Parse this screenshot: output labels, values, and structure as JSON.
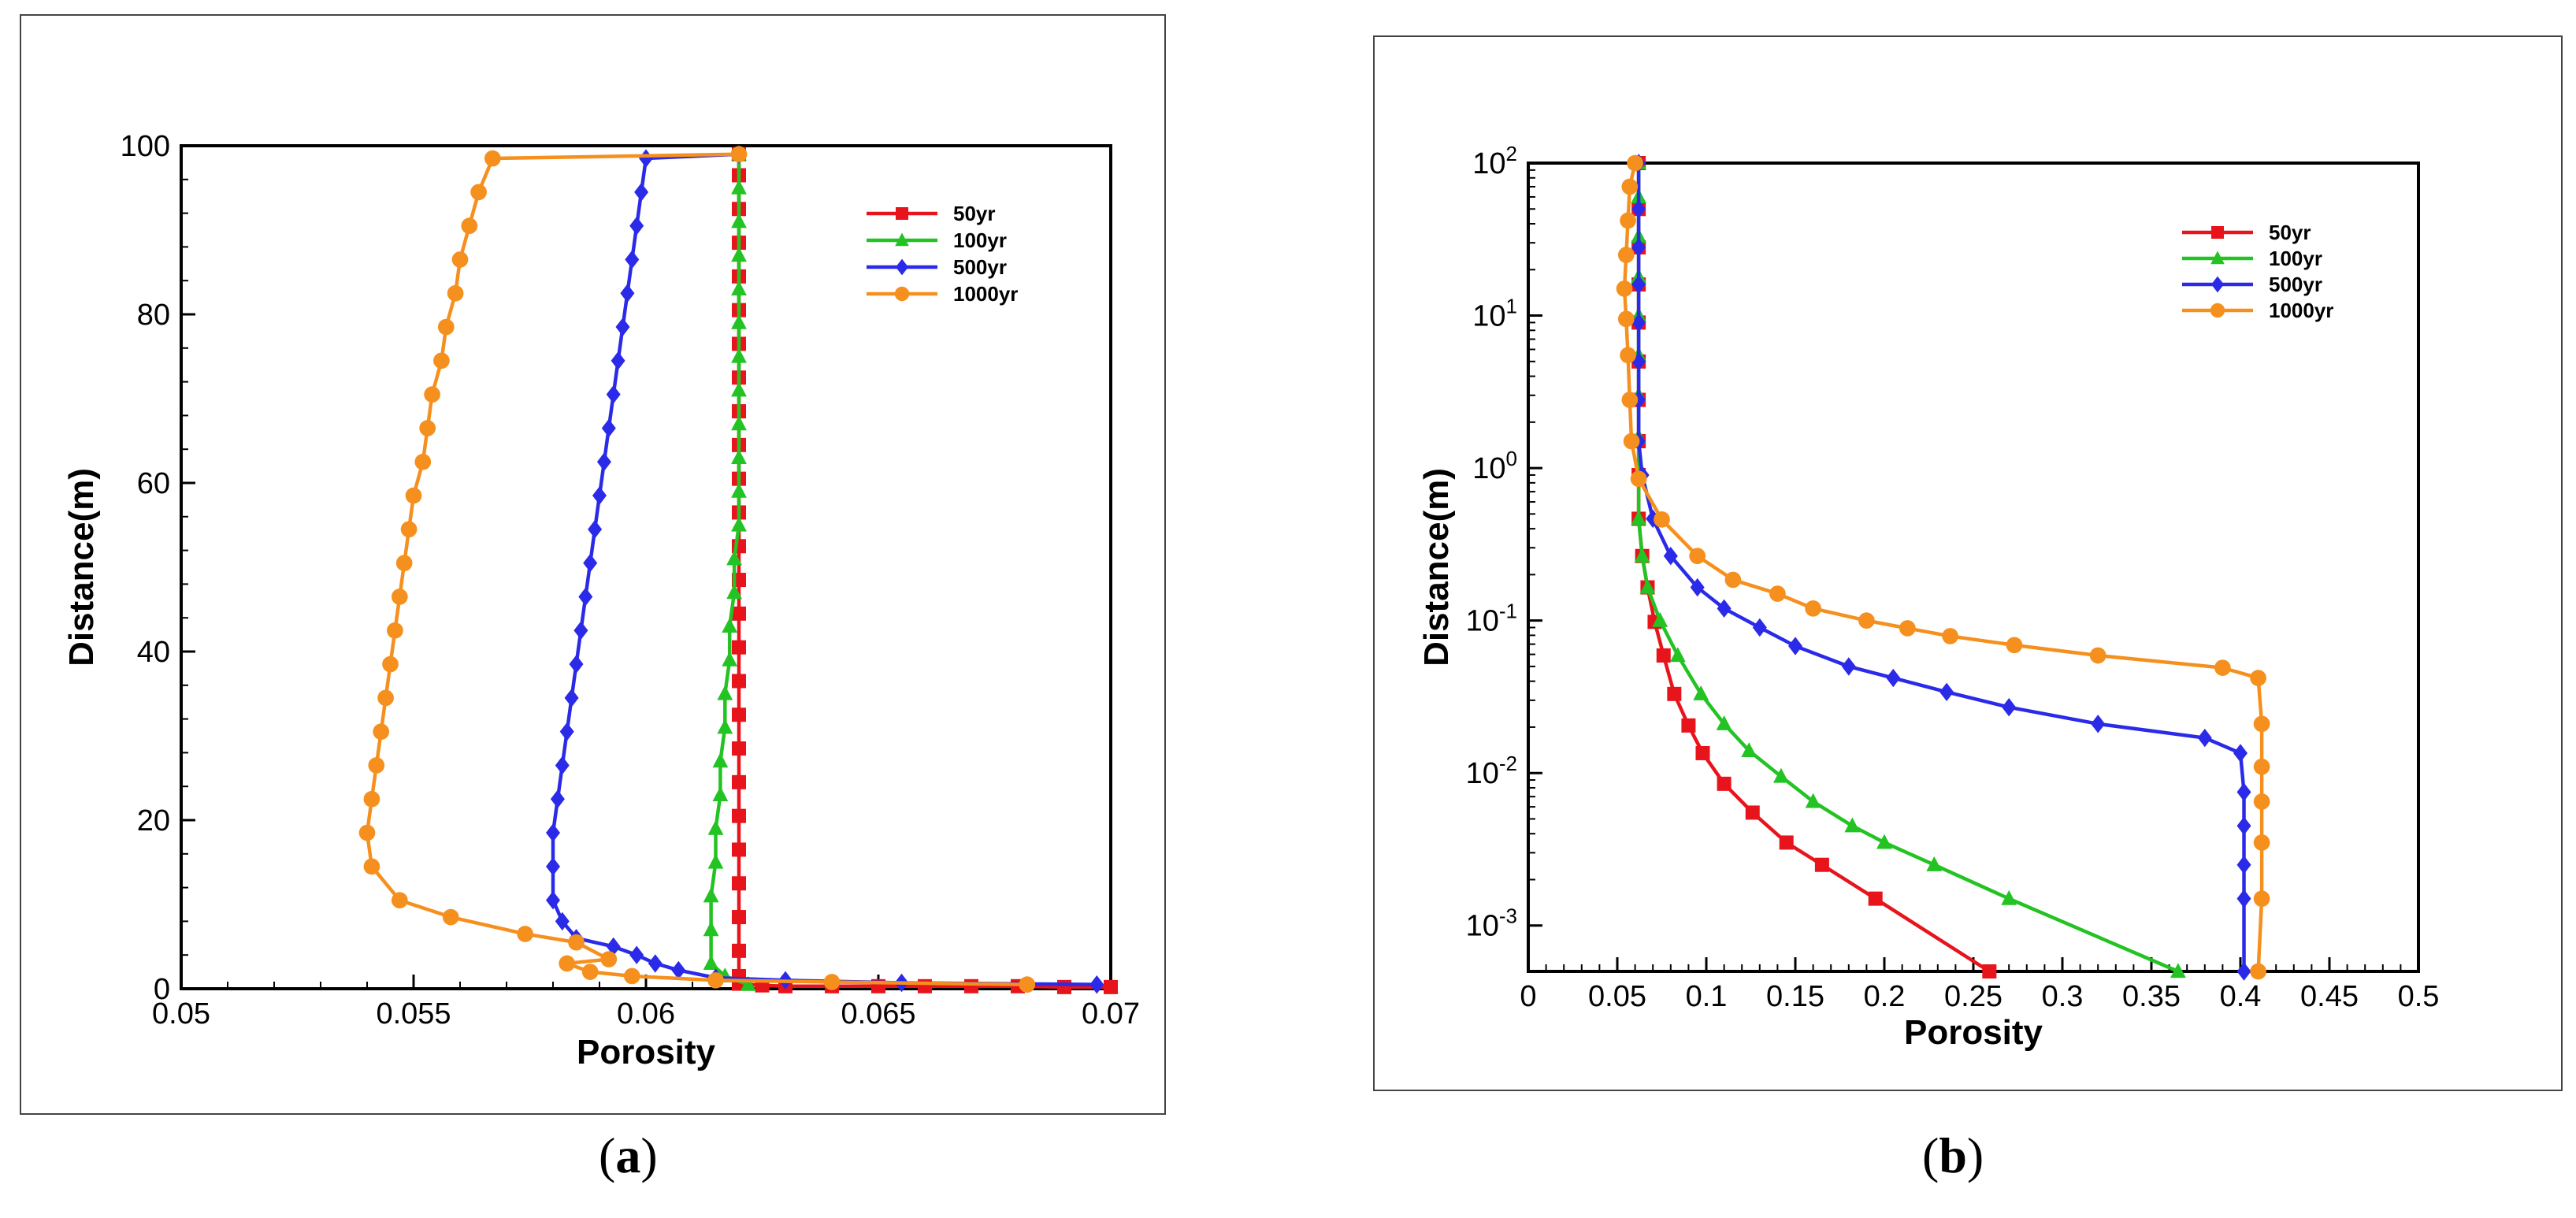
{
  "figure": {
    "caption_a": "a",
    "caption_b": "b"
  },
  "chart_data": [
    {
      "id": "a",
      "type": "line",
      "xlabel": "Porosity",
      "ylabel": "Distance(m)",
      "xlim": [
        0.05,
        0.07
      ],
      "ylim": [
        0,
        100
      ],
      "yscale": "linear",
      "xticks": [
        0.05,
        0.055,
        0.06,
        0.065,
        0.07
      ],
      "xtick_labels": [
        "0.05",
        "0.055",
        "0.06",
        "0.065",
        "0.07"
      ],
      "yticks": [
        0,
        20,
        40,
        60,
        80,
        100
      ],
      "ytick_labels": [
        "0",
        "20",
        "40",
        "60",
        "80",
        "100"
      ],
      "legend_position": "top-right",
      "series": [
        {
          "name": "50yr",
          "color": "#e8141c",
          "marker": "square",
          "points": [
            [
              0.07,
              0.2
            ],
            [
              0.069,
              0.2
            ],
            [
              0.068,
              0.3
            ],
            [
              0.067,
              0.3
            ],
            [
              0.066,
              0.3
            ],
            [
              0.065,
              0.3
            ],
            [
              0.064,
              0.3
            ],
            [
              0.063,
              0.3
            ],
            [
              0.0625,
              0.4
            ],
            [
              0.062,
              0.6
            ],
            [
              0.062,
              1.5
            ],
            [
              0.062,
              4.5
            ],
            [
              0.062,
              8.5
            ],
            [
              0.062,
              12.5
            ],
            [
              0.062,
              16.5
            ],
            [
              0.062,
              20.5
            ],
            [
              0.062,
              24.5
            ],
            [
              0.062,
              28.5
            ],
            [
              0.062,
              32.5
            ],
            [
              0.062,
              36.5
            ],
            [
              0.062,
              40.5
            ],
            [
              0.062,
              44.5
            ],
            [
              0.062,
              48.5
            ],
            [
              0.062,
              52.5
            ],
            [
              0.062,
              56.5
            ],
            [
              0.062,
              60.5
            ],
            [
              0.062,
              64.5
            ],
            [
              0.062,
              68.5
            ],
            [
              0.062,
              72.5
            ],
            [
              0.062,
              76.5
            ],
            [
              0.062,
              80.5
            ],
            [
              0.062,
              84.5
            ],
            [
              0.062,
              88.5
            ],
            [
              0.062,
              92.5
            ],
            [
              0.062,
              96.5
            ],
            [
              0.062,
              99
            ]
          ]
        },
        {
          "name": "100yr",
          "color": "#22c322",
          "marker": "triangle",
          "points": [
            [
              0.0622,
              0.5
            ],
            [
              0.0617,
              1.5
            ],
            [
              0.0614,
              3
            ],
            [
              0.0614,
              7
            ],
            [
              0.0614,
              11
            ],
            [
              0.0615,
              15
            ],
            [
              0.0615,
              19
            ],
            [
              0.0616,
              23
            ],
            [
              0.0616,
              27
            ],
            [
              0.0617,
              31
            ],
            [
              0.0617,
              35
            ],
            [
              0.0618,
              39
            ],
            [
              0.0618,
              43
            ],
            [
              0.0619,
              47
            ],
            [
              0.0619,
              51
            ],
            [
              0.062,
              55
            ],
            [
              0.062,
              59
            ],
            [
              0.062,
              63
            ],
            [
              0.062,
              67
            ],
            [
              0.062,
              71
            ],
            [
              0.062,
              75
            ],
            [
              0.062,
              79
            ],
            [
              0.062,
              83
            ],
            [
              0.062,
              87
            ],
            [
              0.062,
              91
            ],
            [
              0.062,
              95
            ],
            [
              0.062,
              99
            ]
          ]
        },
        {
          "name": "500yr",
          "color": "#2a2ae8",
          "marker": "diamond",
          "points": [
            [
              0.0697,
              0.5
            ],
            [
              0.0655,
              0.7
            ],
            [
              0.063,
              1.0
            ],
            [
              0.0615,
              1.3
            ],
            [
              0.0607,
              2.2
            ],
            [
              0.0602,
              3.0
            ],
            [
              0.0598,
              4.0
            ],
            [
              0.0593,
              5.0
            ],
            [
              0.0585,
              6.0
            ],
            [
              0.0582,
              8.0
            ],
            [
              0.058,
              10.5
            ],
            [
              0.058,
              14.5
            ],
            [
              0.058,
              18.5
            ],
            [
              0.0581,
              22.5
            ],
            [
              0.0582,
              26.5
            ],
            [
              0.0583,
              30.5
            ],
            [
              0.0584,
              34.5
            ],
            [
              0.0585,
              38.5
            ],
            [
              0.0586,
              42.5
            ],
            [
              0.0587,
              46.5
            ],
            [
              0.0588,
              50.5
            ],
            [
              0.0589,
              54.5
            ],
            [
              0.059,
              58.5
            ],
            [
              0.0591,
              62.5
            ],
            [
              0.0592,
              66.5
            ],
            [
              0.0593,
              70.5
            ],
            [
              0.0594,
              74.5
            ],
            [
              0.0595,
              78.5
            ],
            [
              0.0596,
              82.5
            ],
            [
              0.0597,
              86.5
            ],
            [
              0.0598,
              90.5
            ],
            [
              0.0599,
              94.5
            ],
            [
              0.06,
              98.5
            ],
            [
              0.062,
              99
            ]
          ]
        },
        {
          "name": "1000yr",
          "color": "#f5901e",
          "marker": "circle",
          "points": [
            [
              0.0682,
              0.5
            ],
            [
              0.064,
              0.8
            ],
            [
              0.0615,
              1.0
            ],
            [
              0.0597,
              1.5
            ],
            [
              0.0588,
              2.0
            ],
            [
              0.0583,
              3.0
            ],
            [
              0.0592,
              3.5
            ],
            [
              0.0585,
              5.5
            ],
            [
              0.0574,
              6.5
            ],
            [
              0.0558,
              8.5
            ],
            [
              0.0547,
              10.5
            ],
            [
              0.0541,
              14.5
            ],
            [
              0.054,
              18.5
            ],
            [
              0.0541,
              22.5
            ],
            [
              0.0542,
              26.5
            ],
            [
              0.0543,
              30.5
            ],
            [
              0.0544,
              34.5
            ],
            [
              0.0545,
              38.5
            ],
            [
              0.0546,
              42.5
            ],
            [
              0.0547,
              46.5
            ],
            [
              0.0548,
              50.5
            ],
            [
              0.0549,
              54.5
            ],
            [
              0.055,
              58.5
            ],
            [
              0.0552,
              62.5
            ],
            [
              0.0553,
              66.5
            ],
            [
              0.0554,
              70.5
            ],
            [
              0.0556,
              74.5
            ],
            [
              0.0557,
              78.5
            ],
            [
              0.0559,
              82.5
            ],
            [
              0.056,
              86.5
            ],
            [
              0.0562,
              90.5
            ],
            [
              0.0564,
              94.5
            ],
            [
              0.0567,
              98.5
            ],
            [
              0.062,
              99
            ]
          ]
        }
      ]
    },
    {
      "id": "b",
      "type": "line",
      "xlabel": "Porosity",
      "ylabel": "Distance(m)",
      "xlim": [
        0,
        0.5
      ],
      "ylim": [
        0.0005,
        100
      ],
      "yscale": "log",
      "xticks": [
        0,
        0.05,
        0.1,
        0.15,
        0.2,
        0.25,
        0.3,
        0.35,
        0.4,
        0.45,
        0.5
      ],
      "xtick_labels": [
        "0",
        "0.05",
        "0.1",
        "0.15",
        "0.2",
        "0.25",
        "0.3",
        "0.35",
        "0.4",
        "0.45",
        "0.5"
      ],
      "ytick_exponents": [
        "-3",
        "-2",
        "-1",
        "0",
        "1",
        "2"
      ],
      "ytick_base": "10",
      "legend_position": "top-right",
      "series": [
        {
          "name": "50yr",
          "color": "#e8141c",
          "marker": "square",
          "points": [
            [
              0.259,
              0.0005
            ],
            [
              0.195,
              0.0015
            ],
            [
              0.165,
              0.0025
            ],
            [
              0.145,
              0.0035
            ],
            [
              0.126,
              0.0055
            ],
            [
              0.11,
              0.0085
            ],
            [
              0.098,
              0.0135
            ],
            [
              0.09,
              0.0205
            ],
            [
              0.082,
              0.033
            ],
            [
              0.076,
              0.059
            ],
            [
              0.071,
              0.098
            ],
            [
              0.067,
              0.165
            ],
            [
              0.064,
              0.265
            ],
            [
              0.062,
              0.465
            ],
            [
              0.062,
              0.9
            ],
            [
              0.062,
              1.5
            ],
            [
              0.062,
              2.8
            ],
            [
              0.062,
              5
            ],
            [
              0.062,
              9
            ],
            [
              0.062,
              16
            ],
            [
              0.062,
              28
            ],
            [
              0.062,
              50
            ],
            [
              0.062,
              100
            ]
          ]
        },
        {
          "name": "100yr",
          "color": "#22c322",
          "marker": "triangle",
          "points": [
            [
              0.365,
              0.0005
            ],
            [
              0.27,
              0.0015
            ],
            [
              0.228,
              0.0025
            ],
            [
              0.2,
              0.0035
            ],
            [
              0.182,
              0.0045
            ],
            [
              0.16,
              0.0065
            ],
            [
              0.142,
              0.0095
            ],
            [
              0.124,
              0.014
            ],
            [
              0.11,
              0.021
            ],
            [
              0.097,
              0.033
            ],
            [
              0.084,
              0.059
            ],
            [
              0.074,
              0.1
            ],
            [
              0.067,
              0.165
            ],
            [
              0.064,
              0.265
            ],
            [
              0.062,
              0.465
            ],
            [
              0.062,
              0.9
            ],
            [
              0.062,
              1.6
            ],
            [
              0.062,
              3
            ],
            [
              0.062,
              5.5
            ],
            [
              0.062,
              10
            ],
            [
              0.062,
              18
            ],
            [
              0.062,
              33
            ],
            [
              0.062,
              60
            ],
            [
              0.062,
              100
            ]
          ]
        },
        {
          "name": "500yr",
          "color": "#2a2ae8",
          "marker": "diamond",
          "points": [
            [
              0.402,
              0.0005
            ],
            [
              0.402,
              0.0015
            ],
            [
              0.402,
              0.0025
            ],
            [
              0.402,
              0.0045
            ],
            [
              0.402,
              0.0075
            ],
            [
              0.4,
              0.0135
            ],
            [
              0.38,
              0.017
            ],
            [
              0.32,
              0.021
            ],
            [
              0.27,
              0.027
            ],
            [
              0.235,
              0.034
            ],
            [
              0.205,
              0.042
            ],
            [
              0.18,
              0.05
            ],
            [
              0.15,
              0.068
            ],
            [
              0.13,
              0.09
            ],
            [
              0.11,
              0.12
            ],
            [
              0.095,
              0.165
            ],
            [
              0.08,
              0.265
            ],
            [
              0.07,
              0.465
            ],
            [
              0.064,
              0.9
            ],
            [
              0.062,
              1.5
            ],
            [
              0.062,
              2.8
            ],
            [
              0.062,
              5
            ],
            [
              0.062,
              9
            ],
            [
              0.062,
              16
            ],
            [
              0.062,
              28
            ],
            [
              0.062,
              50
            ],
            [
              0.062,
              100
            ]
          ]
        },
        {
          "name": "1000yr",
          "color": "#f5901e",
          "marker": "circle",
          "points": [
            [
              0.41,
              0.0005
            ],
            [
              0.412,
              0.0015
            ],
            [
              0.412,
              0.0035
            ],
            [
              0.412,
              0.0065
            ],
            [
              0.412,
              0.011
            ],
            [
              0.412,
              0.021
            ],
            [
              0.41,
              0.042
            ],
            [
              0.39,
              0.049
            ],
            [
              0.32,
              0.059
            ],
            [
              0.273,
              0.069
            ],
            [
              0.237,
              0.079
            ],
            [
              0.213,
              0.089
            ],
            [
              0.19,
              0.1
            ],
            [
              0.16,
              0.12
            ],
            [
              0.14,
              0.15
            ],
            [
              0.115,
              0.185
            ],
            [
              0.095,
              0.265
            ],
            [
              0.075,
              0.46
            ],
            [
              0.062,
              0.85
            ],
            [
              0.058,
              1.5
            ],
            [
              0.057,
              2.8
            ],
            [
              0.056,
              5.5
            ],
            [
              0.055,
              9.5
            ],
            [
              0.054,
              15
            ],
            [
              0.055,
              25
            ],
            [
              0.056,
              42
            ],
            [
              0.057,
              70
            ],
            [
              0.06,
              100
            ]
          ]
        }
      ]
    }
  ]
}
